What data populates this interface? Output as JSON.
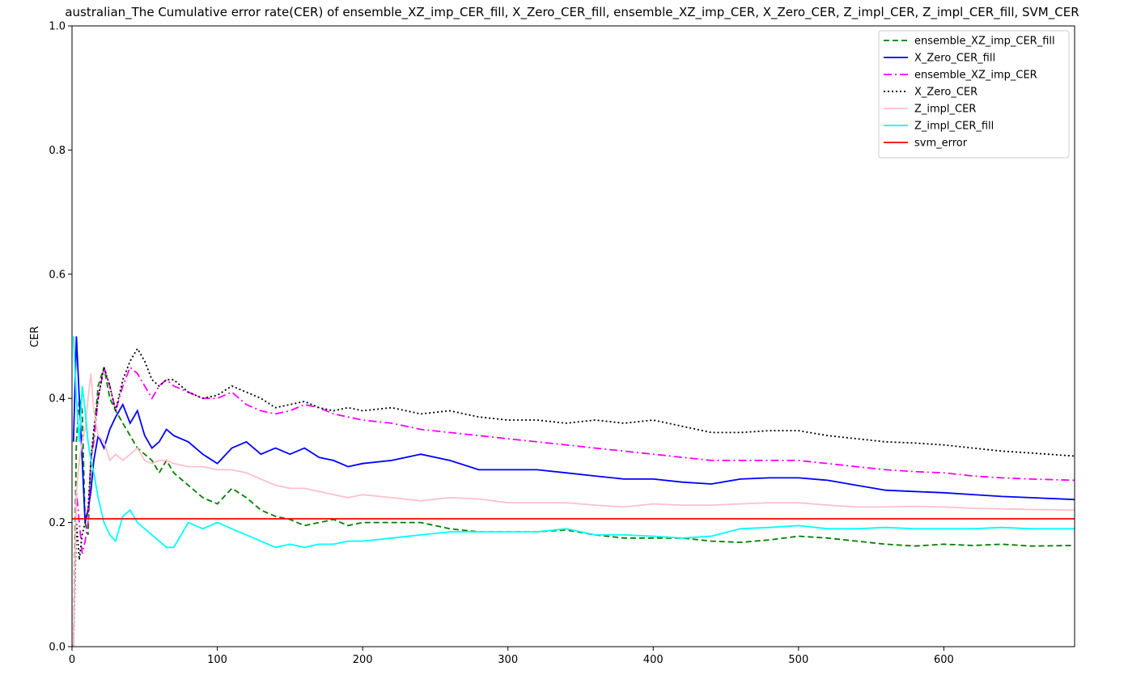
{
  "chart_data": {
    "type": "line",
    "title": "australian_The Cumulative error rate(CER) of ensemble_XZ_imp_CER_fill, X_Zero_CER_fill, ensemble_XZ_imp_CER, X_Zero_CER, Z_impl_CER, Z_impl_CER_fill, SVM_CER",
    "xlabel": "",
    "ylabel": "CER",
    "xlim": [
      0,
      690
    ],
    "ylim": [
      0,
      1.0
    ],
    "xticks": [
      0,
      100,
      200,
      300,
      400,
      500,
      600
    ],
    "yticks": [
      0.0,
      0.2,
      0.4,
      0.6,
      0.8,
      1.0
    ],
    "xtick_labels": [
      "0",
      "100",
      "200",
      "300",
      "400",
      "500",
      "600"
    ],
    "ytick_labels": [
      "0.0",
      "0.2",
      "0.4",
      "0.6",
      "0.8",
      "1.0"
    ],
    "grid": false,
    "legend_position": "top-right",
    "series": [
      {
        "name": "ensemble_XZ_imp_CER_fill",
        "color": "#008000",
        "dash": "dashed",
        "x": [
          1,
          3,
          5,
          7,
          9,
          11,
          13,
          15,
          18,
          22,
          26,
          30,
          35,
          40,
          45,
          50,
          55,
          60,
          65,
          70,
          80,
          90,
          100,
          110,
          120,
          130,
          140,
          150,
          160,
          170,
          180,
          190,
          200,
          220,
          240,
          260,
          280,
          300,
          320,
          340,
          360,
          380,
          400,
          420,
          440,
          460,
          480,
          500,
          520,
          540,
          560,
          580,
          600,
          620,
          640,
          660,
          690
        ],
        "y": [
          0.0,
          0.33,
          0.4,
          0.38,
          0.2,
          0.18,
          0.3,
          0.34,
          0.42,
          0.45,
          0.4,
          0.38,
          0.36,
          0.34,
          0.32,
          0.31,
          0.3,
          0.28,
          0.3,
          0.28,
          0.26,
          0.24,
          0.23,
          0.255,
          0.24,
          0.22,
          0.21,
          0.205,
          0.195,
          0.2,
          0.205,
          0.195,
          0.2,
          0.2,
          0.2,
          0.19,
          0.185,
          0.185,
          0.185,
          0.188,
          0.18,
          0.175,
          0.175,
          0.175,
          0.17,
          0.168,
          0.172,
          0.178,
          0.175,
          0.17,
          0.165,
          0.162,
          0.165,
          0.163,
          0.165,
          0.162,
          0.163
        ]
      },
      {
        "name": "X_Zero_CER_fill",
        "color": "#0000ff",
        "dash": "solid",
        "x": [
          1,
          3,
          5,
          7,
          9,
          11,
          13,
          15,
          18,
          22,
          26,
          30,
          35,
          40,
          45,
          50,
          55,
          60,
          65,
          70,
          80,
          90,
          100,
          110,
          120,
          130,
          140,
          150,
          160,
          170,
          180,
          190,
          200,
          220,
          240,
          260,
          280,
          300,
          320,
          340,
          360,
          380,
          400,
          420,
          440,
          460,
          480,
          500,
          520,
          540,
          560,
          580,
          600,
          620,
          640,
          660,
          690
        ],
        "y": [
          0.33,
          0.5,
          0.4,
          0.3,
          0.2,
          0.22,
          0.25,
          0.3,
          0.34,
          0.32,
          0.35,
          0.37,
          0.39,
          0.36,
          0.38,
          0.34,
          0.32,
          0.33,
          0.35,
          0.34,
          0.33,
          0.31,
          0.295,
          0.32,
          0.33,
          0.31,
          0.32,
          0.31,
          0.32,
          0.305,
          0.3,
          0.29,
          0.295,
          0.3,
          0.31,
          0.3,
          0.285,
          0.285,
          0.285,
          0.28,
          0.275,
          0.27,
          0.27,
          0.265,
          0.262,
          0.27,
          0.272,
          0.272,
          0.268,
          0.26,
          0.252,
          0.25,
          0.248,
          0.245,
          0.242,
          0.24,
          0.237
        ]
      },
      {
        "name": "ensemble_XZ_imp_CER",
        "color": "#ff00ff",
        "dash": "dashdot",
        "x": [
          1,
          3,
          5,
          7,
          9,
          11,
          13,
          15,
          18,
          22,
          26,
          30,
          35,
          40,
          45,
          50,
          55,
          60,
          65,
          70,
          80,
          90,
          100,
          110,
          120,
          130,
          140,
          150,
          160,
          170,
          180,
          190,
          200,
          220,
          240,
          260,
          280,
          300,
          320,
          340,
          360,
          380,
          400,
          420,
          440,
          460,
          480,
          500,
          520,
          540,
          560,
          580,
          600,
          620,
          640,
          660,
          690
        ],
        "y": [
          0.0,
          0.25,
          0.2,
          0.15,
          0.17,
          0.2,
          0.3,
          0.33,
          0.4,
          0.45,
          0.42,
          0.38,
          0.42,
          0.45,
          0.44,
          0.42,
          0.4,
          0.42,
          0.43,
          0.42,
          0.41,
          0.4,
          0.4,
          0.41,
          0.39,
          0.38,
          0.375,
          0.38,
          0.39,
          0.385,
          0.375,
          0.37,
          0.365,
          0.36,
          0.35,
          0.345,
          0.34,
          0.335,
          0.33,
          0.325,
          0.32,
          0.315,
          0.31,
          0.305,
          0.3,
          0.3,
          0.3,
          0.3,
          0.295,
          0.29,
          0.285,
          0.282,
          0.28,
          0.275,
          0.272,
          0.27,
          0.268
        ]
      },
      {
        "name": "X_Zero_CER",
        "color": "#000000",
        "dash": "dotted",
        "x": [
          1,
          3,
          5,
          7,
          9,
          11,
          13,
          15,
          18,
          22,
          26,
          30,
          35,
          40,
          45,
          50,
          55,
          60,
          65,
          70,
          80,
          90,
          100,
          110,
          120,
          130,
          140,
          150,
          160,
          170,
          180,
          190,
          200,
          220,
          240,
          260,
          280,
          300,
          320,
          340,
          360,
          380,
          400,
          420,
          440,
          460,
          480,
          500,
          520,
          540,
          560,
          580,
          600,
          620,
          640,
          660,
          690
        ],
        "y": [
          0.0,
          0.2,
          0.14,
          0.18,
          0.2,
          0.22,
          0.3,
          0.35,
          0.4,
          0.45,
          0.42,
          0.38,
          0.43,
          0.46,
          0.48,
          0.46,
          0.43,
          0.42,
          0.43,
          0.43,
          0.41,
          0.4,
          0.405,
          0.42,
          0.41,
          0.4,
          0.385,
          0.39,
          0.395,
          0.385,
          0.38,
          0.385,
          0.38,
          0.385,
          0.375,
          0.38,
          0.37,
          0.365,
          0.365,
          0.36,
          0.365,
          0.36,
          0.365,
          0.355,
          0.345,
          0.345,
          0.348,
          0.348,
          0.34,
          0.335,
          0.33,
          0.328,
          0.325,
          0.32,
          0.315,
          0.312,
          0.307
        ]
      },
      {
        "name": "Z_impl_CER",
        "color": "#ffc0cb",
        "dash": "solid",
        "x": [
          1,
          3,
          5,
          7,
          9,
          11,
          13,
          15,
          18,
          22,
          26,
          30,
          35,
          40,
          45,
          50,
          55,
          60,
          65,
          70,
          80,
          90,
          100,
          110,
          120,
          130,
          140,
          150,
          160,
          170,
          180,
          190,
          200,
          220,
          240,
          260,
          280,
          300,
          320,
          340,
          360,
          380,
          400,
          420,
          440,
          460,
          480,
          500,
          520,
          540,
          560,
          580,
          600,
          620,
          640,
          660,
          690
        ],
        "y": [
          0.0,
          0.25,
          0.3,
          0.33,
          0.35,
          0.4,
          0.44,
          0.38,
          0.34,
          0.33,
          0.3,
          0.31,
          0.3,
          0.31,
          0.32,
          0.3,
          0.295,
          0.3,
          0.3,
          0.295,
          0.29,
          0.29,
          0.285,
          0.285,
          0.28,
          0.27,
          0.26,
          0.255,
          0.255,
          0.25,
          0.245,
          0.24,
          0.245,
          0.24,
          0.235,
          0.24,
          0.238,
          0.232,
          0.232,
          0.232,
          0.228,
          0.225,
          0.23,
          0.228,
          0.228,
          0.23,
          0.232,
          0.232,
          0.228,
          0.225,
          0.225,
          0.226,
          0.225,
          0.223,
          0.222,
          0.221,
          0.22
        ]
      },
      {
        "name": "Z_impl_CER_fill",
        "color": "#00ffff",
        "dash": "solid",
        "x": [
          1,
          3,
          5,
          7,
          9,
          11,
          13,
          15,
          18,
          22,
          26,
          30,
          35,
          40,
          45,
          50,
          55,
          60,
          65,
          70,
          80,
          90,
          100,
          110,
          120,
          130,
          140,
          150,
          160,
          170,
          180,
          190,
          200,
          220,
          240,
          260,
          280,
          300,
          320,
          340,
          360,
          380,
          400,
          420,
          440,
          460,
          480,
          500,
          520,
          540,
          560,
          580,
          600,
          620,
          640,
          660,
          690
        ],
        "y": [
          0.5,
          0.4,
          0.33,
          0.42,
          0.38,
          0.33,
          0.3,
          0.28,
          0.24,
          0.2,
          0.18,
          0.17,
          0.21,
          0.22,
          0.2,
          0.19,
          0.18,
          0.17,
          0.16,
          0.16,
          0.2,
          0.19,
          0.2,
          0.19,
          0.18,
          0.17,
          0.16,
          0.165,
          0.16,
          0.165,
          0.165,
          0.17,
          0.17,
          0.175,
          0.18,
          0.185,
          0.185,
          0.185,
          0.185,
          0.19,
          0.18,
          0.18,
          0.178,
          0.175,
          0.178,
          0.19,
          0.192,
          0.195,
          0.19,
          0.19,
          0.192,
          0.19,
          0.19,
          0.19,
          0.192,
          0.19,
          0.19
        ]
      },
      {
        "name": "svm_error",
        "color": "#ff0000",
        "dash": "solid",
        "x": [
          0,
          690
        ],
        "y": [
          0.206,
          0.206
        ]
      }
    ]
  }
}
